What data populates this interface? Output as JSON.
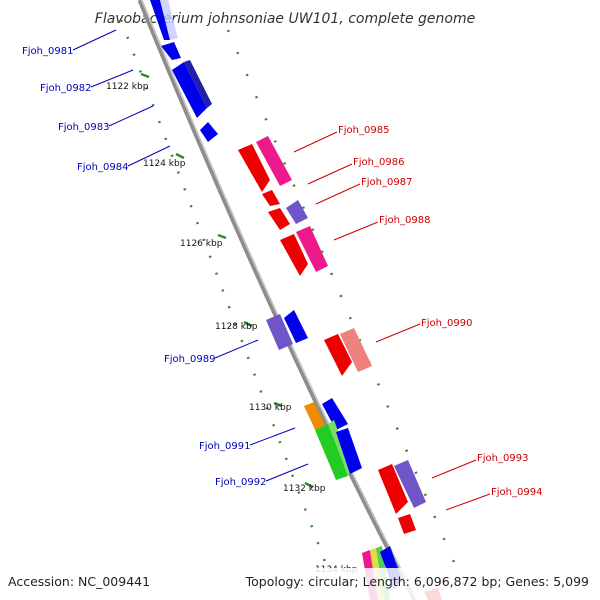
{
  "title": "Flavobacterium johnsoniae UW101, complete genome",
  "footer": {
    "accession": "Accession: NC_009441",
    "topology": "Topology: circular; Length: 6,096,872 bp; Genes: 5,099"
  },
  "colors": {
    "backbone": "#8c8c8c",
    "tick": "#2e8b2e",
    "forward_label": "#0000bb",
    "reverse_label": "#cc0000"
  },
  "ticks": [
    "1122 kbp",
    "1124 kbp",
    "1126 kbp",
    "1128 kbp",
    "1130 kbp",
    "1132 kbp",
    "1134 kbp"
  ],
  "genes": [
    {
      "label": "Fjoh_0981",
      "strand": "forward",
      "color": "#0000ee"
    },
    {
      "label": "Fjoh_0982",
      "strand": "forward",
      "color": "#0000ee"
    },
    {
      "label": "Fjoh_0983",
      "strand": "forward",
      "color": "#0000ee"
    },
    {
      "label": "Fjoh_0984",
      "strand": "forward",
      "color": "#0000ee"
    },
    {
      "label": "Fjoh_0985",
      "strand": "reverse",
      "color": "#ee1a8c"
    },
    {
      "label": "Fjoh_0986",
      "strand": "reverse",
      "color": "#ee0000"
    },
    {
      "label": "Fjoh_0987",
      "strand": "reverse",
      "color": "#6f55c8"
    },
    {
      "label": "Fjoh_0988",
      "strand": "reverse",
      "color": "#ee1a8c"
    },
    {
      "label": "Fjoh_0989",
      "strand": "forward",
      "color": "#0000ee"
    },
    {
      "label": "Fjoh_0990",
      "strand": "reverse",
      "color": "#ee8080"
    },
    {
      "label": "Fjoh_0991",
      "strand": "forward",
      "color": "#0000ee"
    },
    {
      "label": "Fjoh_0992",
      "strand": "forward",
      "color": "#22cc22"
    },
    {
      "label": "Fjoh_0993",
      "strand": "reverse",
      "color": "#6f55c8"
    },
    {
      "label": "Fjoh_0994",
      "strand": "reverse",
      "color": "#ee0000"
    }
  ]
}
